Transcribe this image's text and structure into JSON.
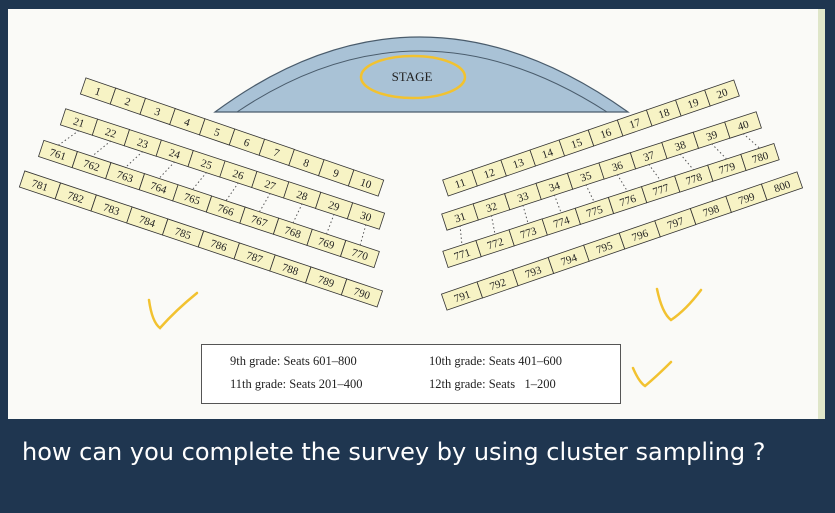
{
  "stage": {
    "label": "STAGE"
  },
  "sections": {
    "left": {
      "rows": [
        {
          "seats": [
            "1",
            "2",
            "3",
            "4",
            "5",
            "6",
            "7",
            "8",
            "9",
            "10"
          ]
        },
        {
          "seats": [
            "21",
            "22",
            "23",
            "24",
            "25",
            "26",
            "27",
            "28",
            "29",
            "30"
          ]
        },
        {
          "seats": [
            "761",
            "762",
            "763",
            "764",
            "765",
            "766",
            "767",
            "768",
            "769",
            "770"
          ]
        },
        {
          "seats": [
            "781",
            "782",
            "783",
            "784",
            "785",
            "786",
            "787",
            "788",
            "789",
            "790"
          ]
        }
      ]
    },
    "right": {
      "rows": [
        {
          "seats": [
            "11",
            "12",
            "13",
            "14",
            "15",
            "16",
            "17",
            "18",
            "19",
            "20"
          ]
        },
        {
          "seats": [
            "31",
            "32",
            "33",
            "34",
            "35",
            "36",
            "37",
            "38",
            "39",
            "40"
          ]
        },
        {
          "seats": [
            "771",
            "772",
            "773",
            "774",
            "775",
            "776",
            "777",
            "778",
            "779",
            "780"
          ]
        },
        {
          "seats": [
            "791",
            "792",
            "793",
            "794",
            "795",
            "796",
            "797",
            "798",
            "799",
            "800"
          ]
        }
      ]
    }
  },
  "legend": {
    "grade9": "9th grade: Seats 601–800",
    "grade10": "10th grade: Seats 401–600",
    "grade11": "11th grade: Seats 201–400",
    "grade12": "12th grade: Seats   1–200"
  },
  "question": "how can you complete the survey by using cluster sampling ?",
  "colors": {
    "seat_fill": "#f7f3c5",
    "stage_fill": "#a9c2d6",
    "annotation": "#f2c230",
    "background": "#1f3650"
  }
}
